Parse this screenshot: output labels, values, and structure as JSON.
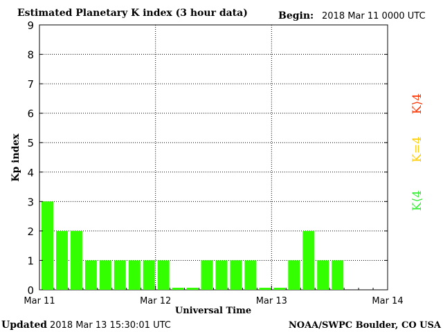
{
  "header": {
    "title": "Estimated Planetary K index (3 hour data)",
    "begin_label": "Begin:",
    "begin_value": "2018 Mar 11 0000 UTC"
  },
  "footer": {
    "updated_label": "Updated",
    "updated_value": "2018 Mar 13 15:30:01 UTC",
    "source": "NOAA/SWPC Boulder, CO USA"
  },
  "legend": {
    "above": {
      "text": "K⟩4",
      "color": "#ff3300"
    },
    "equal": {
      "text": "K=4",
      "color": "#ffcc00"
    },
    "below": {
      "text": "K⟨4",
      "color": "#33ee33"
    }
  },
  "chart_data": {
    "type": "bar",
    "xlabel": "Universal Time",
    "ylabel": "Kp index",
    "ylim": [
      0,
      9
    ],
    "yticks": [
      0,
      1,
      2,
      3,
      4,
      5,
      6,
      7,
      8,
      9
    ],
    "grid": true,
    "x_tick_labels": [
      "Mar 11",
      "Mar 12",
      "Mar 13",
      "Mar 14"
    ],
    "bar_interval_hours": 3,
    "values": [
      3,
      2,
      2,
      1,
      1,
      1,
      1,
      1,
      1,
      0,
      0,
      1,
      1,
      1,
      1,
      0,
      0,
      1,
      2,
      1,
      1
    ],
    "bar_color": "#33ff00"
  }
}
